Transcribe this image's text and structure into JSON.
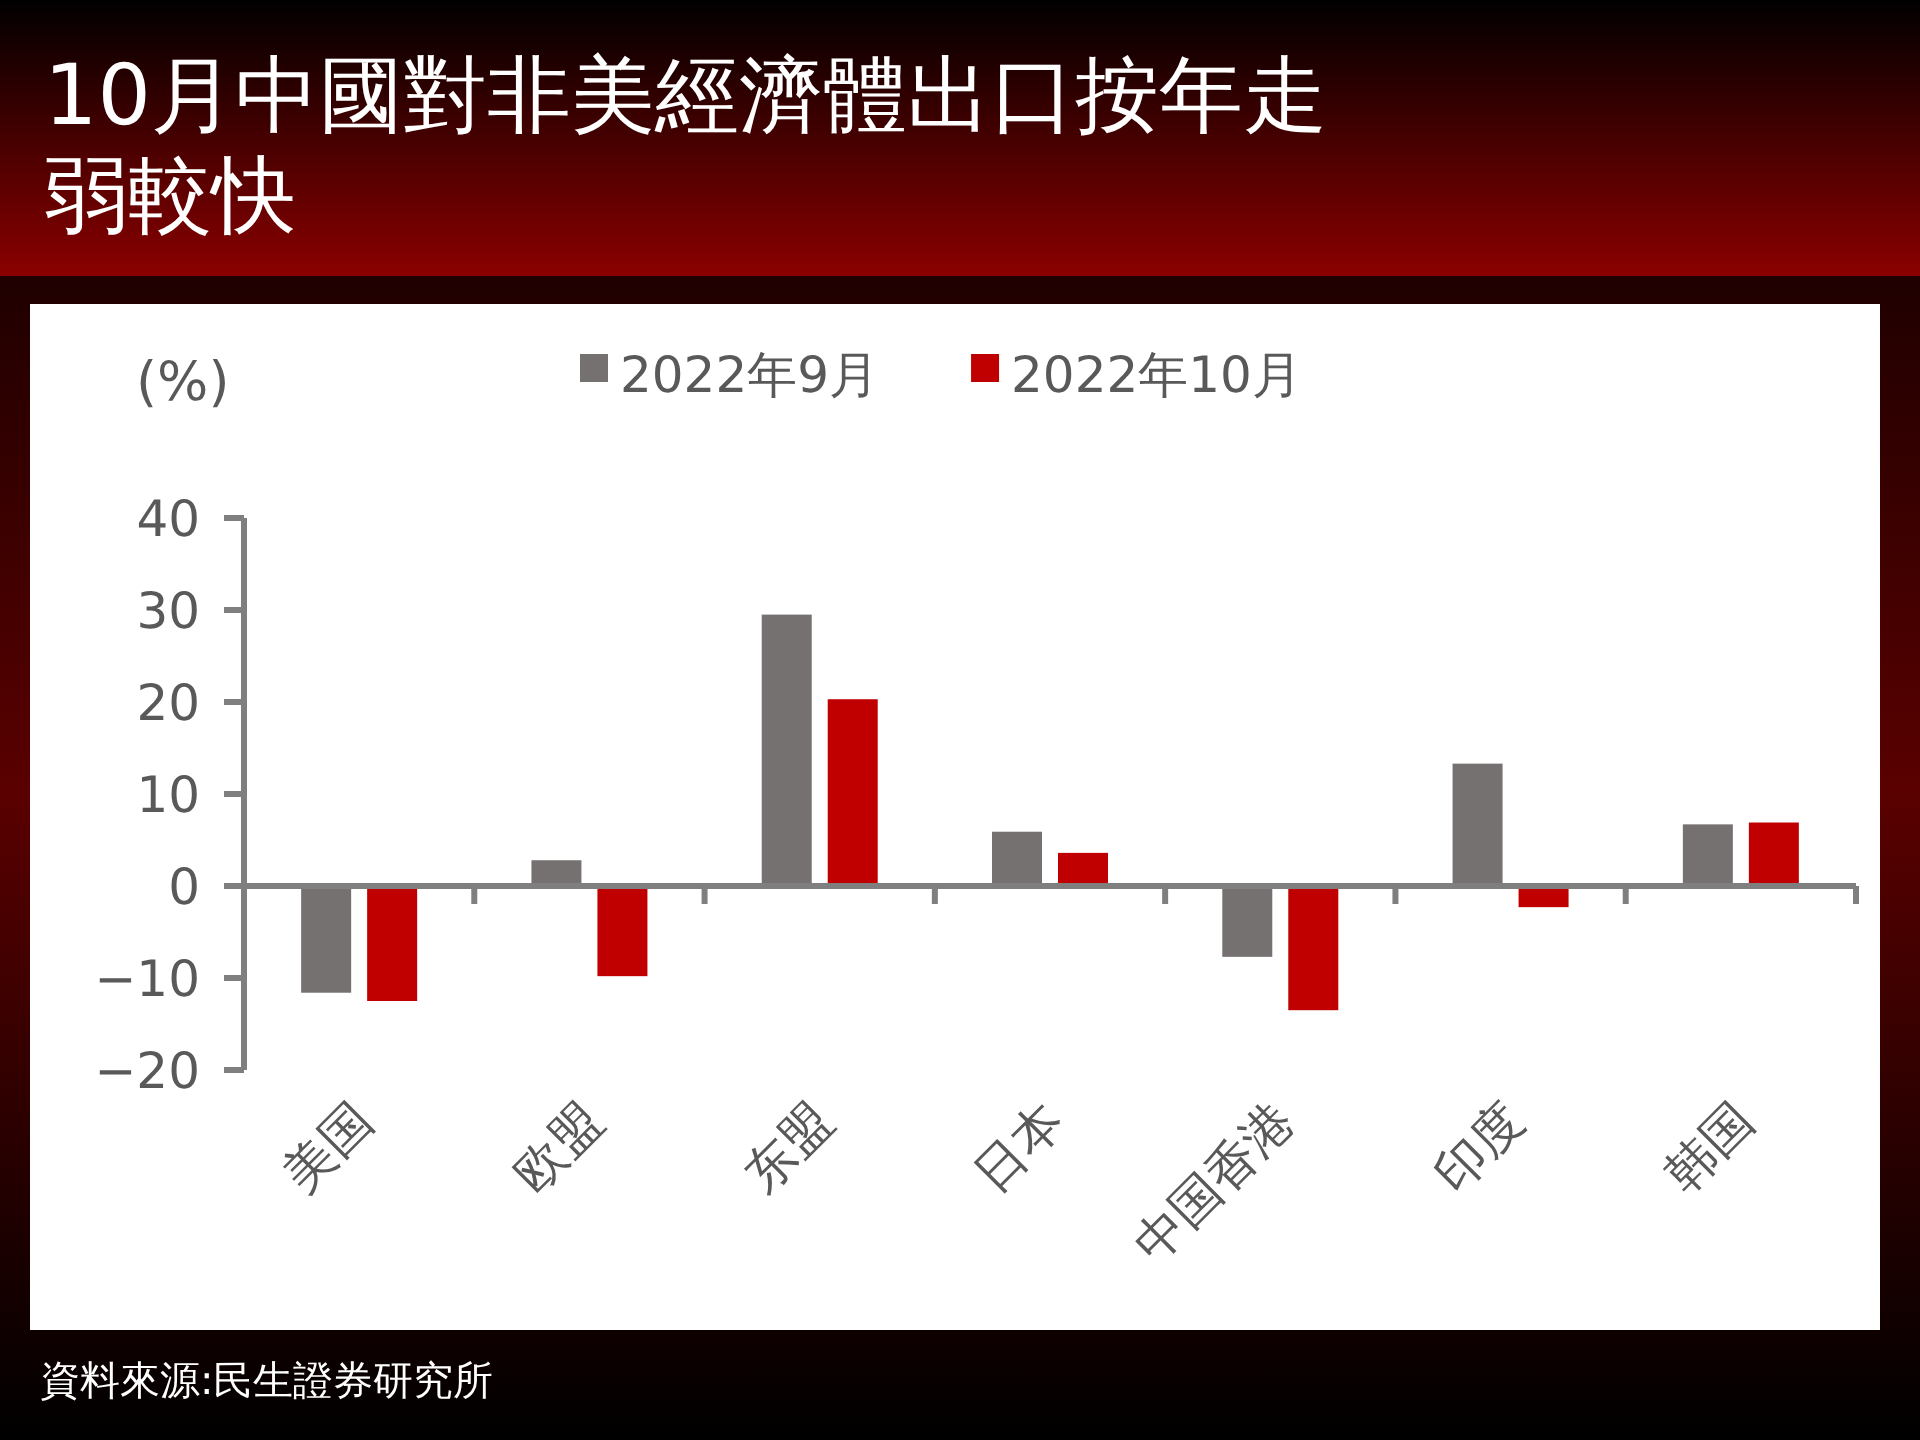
{
  "chart_data": {
    "type": "bar",
    "title": "10月中國對非美經濟體出口按年走弱較快",
    "ylabel": "(%)",
    "categories": [
      "美国",
      "欧盟",
      "东盟",
      "日本",
      "中国香港",
      "印度",
      "韩国"
    ],
    "series": [
      {
        "name": "2022年9月",
        "color": "#767171",
        "values": [
          -11.6,
          2.8,
          29.5,
          5.9,
          -7.7,
          13.3,
          6.7
        ]
      },
      {
        "name": "2022年10月",
        "color": "#c00000",
        "values": [
          -12.5,
          -9.8,
          20.3,
          3.6,
          -13.5,
          -2.3,
          6.9
        ]
      }
    ],
    "ylim": [
      -20,
      40
    ],
    "yticks": [
      {
        "value": -20,
        "label": "−20"
      },
      {
        "value": -10,
        "label": "−10"
      },
      0,
      10,
      20,
      30,
      40
    ],
    "legend": "top",
    "annotations": [
      "資料來源:民生證券研究所"
    ]
  }
}
